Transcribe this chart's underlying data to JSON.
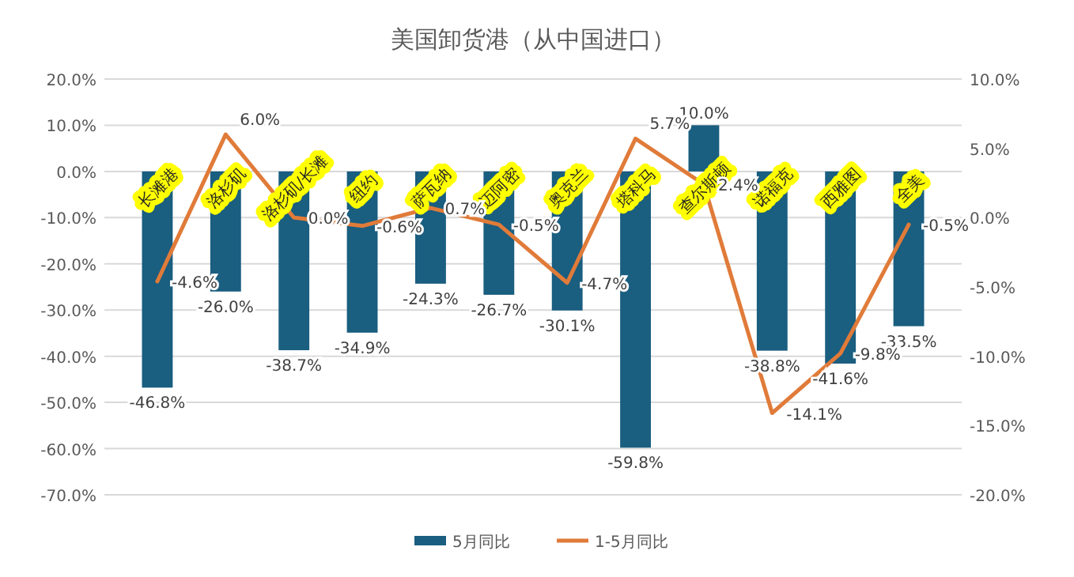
{
  "chart_data": {
    "type": "bar",
    "title": "美国卸货港（从中国进口）",
    "categories": [
      "长滩港",
      "洛杉矶",
      "洛杉矶/长滩",
      "纽约",
      "萨瓦纳",
      "迈阿密",
      "奥克兰",
      "塔科马",
      "查尔斯顿",
      "诺福克",
      "西雅图",
      "全美"
    ],
    "series": [
      {
        "name": "5月同比",
        "color": "#1a5e80",
        "values": [
          -46.8,
          -26.0,
          -38.7,
          -34.9,
          -24.3,
          -26.7,
          -30.1,
          -59.8,
          10.0,
          -38.8,
          -41.6,
          -33.5
        ],
        "value_labels": [
          "-46.8%",
          "-26.0%",
          "-38.7%",
          "-34.9%",
          "-24.3%",
          "-26.7%",
          "-30.1%",
          "-59.8%",
          "10.0%",
          "-38.8%",
          "-41.6%",
          "-33.5%"
        ]
      },
      {
        "name": "1-5月同比",
        "type": "line",
        "axis": "y2",
        "color": "#e07b39",
        "values": [
          -4.6,
          6.0,
          0.0,
          -0.6,
          0.7,
          -0.5,
          -4.7,
          5.7,
          2.4,
          -14.1,
          -9.8,
          -0.5
        ],
        "value_labels": [
          "-4.6%",
          "6.0%",
          "0.0%",
          "-0.6%",
          "0.7%",
          "-0.5%",
          "-4.7%",
          "5.7%",
          "2.4%",
          "-14.1%",
          "-9.8%",
          "-0.5%"
        ]
      }
    ],
    "ylim": [
      -70,
      20
    ],
    "yticks": [
      {
        "value": 20,
        "label": "20.0%"
      },
      {
        "value": 10,
        "label": "10.0%"
      },
      {
        "value": 0,
        "label": "0.0%"
      },
      {
        "value": -10,
        "label": "-10.0%"
      },
      {
        "value": -20,
        "label": "-20.0%"
      },
      {
        "value": -30,
        "label": "-30.0%"
      },
      {
        "value": -40,
        "label": "-40.0%"
      },
      {
        "value": -50,
        "label": "-50.0%"
      },
      {
        "value": -60,
        "label": "-60.0%"
      },
      {
        "value": -70,
        "label": "-70.0%"
      }
    ],
    "y2lim": [
      -20,
      10
    ],
    "y2ticks": [
      {
        "value": 10,
        "label": "10.0%"
      },
      {
        "value": 5,
        "label": "5.0%"
      },
      {
        "value": 0,
        "label": "0.0%"
      },
      {
        "value": -5,
        "label": "-5.0%"
      },
      {
        "value": -10,
        "label": "-10.0%"
      },
      {
        "value": -15,
        "label": "-15.0%"
      },
      {
        "value": -20,
        "label": "-20.0%"
      }
    ],
    "grid": "y",
    "legend": "bottom",
    "marker": "none",
    "line_style": "solid"
  }
}
